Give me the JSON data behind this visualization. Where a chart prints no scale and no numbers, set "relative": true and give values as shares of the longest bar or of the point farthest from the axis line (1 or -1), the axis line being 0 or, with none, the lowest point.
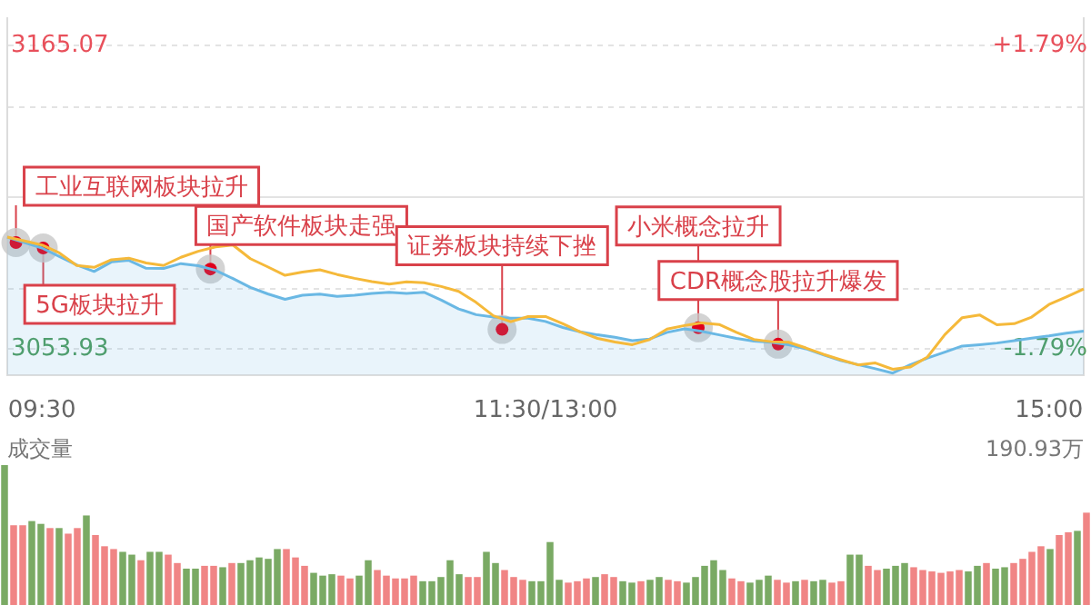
{
  "chart_data": [
    {
      "type": "line",
      "categories": [
        null,
        null,
        "09:30",
        null,
        null,
        null,
        null,
        null,
        null,
        null,
        null,
        null,
        null,
        null,
        null,
        null,
        null,
        null,
        null,
        null,
        null,
        null,
        null,
        null,
        null,
        null,
        null,
        null,
        null,
        null,
        null,
        "11:30/13:00",
        null,
        null,
        null,
        null,
        null,
        null,
        null,
        null,
        null,
        null,
        null,
        null,
        null,
        null,
        null,
        null,
        null,
        null,
        null,
        null,
        null,
        null,
        null,
        null,
        null,
        null,
        null,
        null,
        "15:00",
        null,
        null
      ],
      "ylim": [
        3044.4,
        3175.2
      ],
      "yticks": [
        3165.07,
        {
          "value": 3142.5,
          "label": null
        },
        {
          "value": 3109.5,
          "label": null
        },
        {
          "value": 3075.9,
          "label": null
        },
        3053.93
      ],
      "y2lim": [
        -2.1,
        2.12
      ],
      "y2ticks": [
        {
          "value": 1.79,
          "label": "+1.79%"
        },
        {
          "value": -1.79,
          "label": "-1.79%"
        }
      ],
      "grid": "y",
      "legend": false,
      "marker": "none",
      "series": [
        {
          "type": "area",
          "color": "#6ab8e4",
          "values": [
            3094.9,
            3092.9,
            3090.9,
            3087.8,
            3084.7,
            3082.3,
            3085.8,
            3086.4,
            3083.5,
            3083.4,
            3085.2,
            3084.4,
            3082.7,
            3079.7,
            3076.5,
            3074.1,
            3072.1,
            3073.6,
            3074.0,
            3073.2,
            3073.6,
            3074.3,
            3074.7,
            3074.3,
            3074.7,
            3071.8,
            3068.6,
            3066.5,
            3065.6,
            3065.2,
            3065.2,
            3064.0,
            3061.8,
            3060.2,
            3059.1,
            3058.2,
            3057.0,
            3057.6,
            3060.0,
            3061.3,
            3060.4,
            3059.1,
            3057.8,
            3056.8,
            3056.4,
            3055.5,
            3054.0,
            3051.8,
            3049.7,
            3048.2,
            3046.7,
            3045.1,
            3048.1,
            3050.6,
            3052.8,
            3055.0,
            3055.5,
            3056.1,
            3057.0,
            3057.9,
            3058.7,
            3059.7,
            3060.5
          ]
        },
        {
          "type": "line",
          "color": "#f5b93a",
          "values": [
            3094.9,
            3093.5,
            3092.0,
            3089.1,
            3084.5,
            3083.8,
            3086.6,
            3087.2,
            3085.4,
            3084.5,
            3087.5,
            3089.7,
            3091.3,
            3092.0,
            3087.0,
            3084.0,
            3080.9,
            3082.1,
            3082.9,
            3081.2,
            3079.8,
            3078.6,
            3077.7,
            3078.5,
            3078.2,
            3076.8,
            3075.0,
            3071.0,
            3066.1,
            3063.9,
            3065.8,
            3065.8,
            3063.2,
            3060.2,
            3057.8,
            3056.5,
            3055.5,
            3057.4,
            3061.2,
            3062.5,
            3063.5,
            3062.9,
            3060.0,
            3057.4,
            3056.6,
            3056.4,
            3054.3,
            3052.0,
            3050.0,
            3048.1,
            3048.8,
            3046.5,
            3047.3,
            3051.0,
            3059.2,
            3065.4,
            3066.4,
            3062.8,
            3063.2,
            3065.6,
            3070.2,
            3073.0,
            3075.9
          ]
        }
      ],
      "annotations": [
        "工业互联网板块拉升",
        "5G板块拉升",
        {
          "text": "国产软件板块走强",
          "y": 3083.2
        },
        {
          "text": "证券板块持续下挫",
          "y": 3061.1
        },
        {
          "text": "小米概念拉升",
          "y": 3061.7
        },
        {
          "text": "CDR概念股拉升爆发",
          "y": 3055.7
        }
      ]
    },
    {
      "type": "bar",
      "relative": true,
      "legend": false,
      "tick_labels": false,
      "categories": [
        null,
        null,
        null,
        null,
        null,
        null,
        null,
        null,
        null,
        null,
        null,
        null,
        null,
        null,
        null,
        null,
        null,
        null,
        null,
        null,
        null,
        null,
        null,
        null,
        null,
        null,
        null,
        null,
        null,
        null,
        null,
        null,
        null,
        null,
        null,
        null,
        null,
        null,
        null,
        null,
        null,
        null,
        null,
        null,
        null,
        null,
        null,
        null,
        null,
        null,
        null,
        null,
        null,
        null,
        null,
        null,
        null,
        null,
        null,
        null,
        null,
        null,
        null,
        null,
        null,
        null,
        null,
        null,
        null,
        null,
        null,
        null,
        null,
        null,
        null,
        null,
        null,
        null,
        null,
        null,
        null,
        null,
        null,
        null,
        null,
        null,
        null,
        null,
        null,
        null,
        null,
        null,
        null,
        null,
        null,
        null,
        null,
        null,
        null,
        null,
        null,
        null,
        null,
        null,
        null,
        null,
        null,
        null,
        null,
        null,
        null,
        null,
        null,
        null,
        null,
        null,
        null,
        null,
        null,
        null
      ],
      "values": [
        1.0,
        0.57,
        0.57,
        0.6,
        0.58,
        0.55,
        0.55,
        0.51,
        0.55,
        0.64,
        0.5,
        0.42,
        0.4,
        0.38,
        0.36,
        0.32,
        0.38,
        0.38,
        0.36,
        0.3,
        0.26,
        0.26,
        0.28,
        0.28,
        0.27,
        0.3,
        0.3,
        0.32,
        0.34,
        0.33,
        0.4,
        0.4,
        0.34,
        0.28,
        0.23,
        0.21,
        0.22,
        0.21,
        0.19,
        0.21,
        0.32,
        0.25,
        0.21,
        0.19,
        0.19,
        0.21,
        0.17,
        0.17,
        0.2,
        0.32,
        0.22,
        0.2,
        0.2,
        0.38,
        0.3,
        0.25,
        0.2,
        0.18,
        0.17,
        0.17,
        0.45,
        0.18,
        0.16,
        0.17,
        0.19,
        0.2,
        0.22,
        0.2,
        0.17,
        0.16,
        0.17,
        0.18,
        0.2,
        0.18,
        0.17,
        0.16,
        0.2,
        0.28,
        0.32,
        0.25,
        0.19,
        0.17,
        0.16,
        0.18,
        0.21,
        0.18,
        0.16,
        0.17,
        0.18,
        0.17,
        0.18,
        0.16,
        0.17,
        0.36,
        0.36,
        0.28,
        0.25,
        0.26,
        0.28,
        0.3,
        0.27,
        0.25,
        0.24,
        0.23,
        0.24,
        0.25,
        0.24,
        0.28,
        0.3,
        0.26,
        0.27,
        0.3,
        0.33,
        0.38,
        0.42,
        0.4,
        0.5,
        0.52,
        0.53,
        0.66
      ],
      "colors": [
        "#7aaa64",
        "#f08585",
        "#f08585",
        "#7aaa64",
        "#7aaa64",
        "#f08585",
        "#7aaa64",
        "#f08585",
        "#f08585",
        "#7aaa64",
        "#f08585",
        "#f08585",
        "#f08585",
        "#7aaa64",
        "#7aaa64",
        "#f08585",
        "#7aaa64",
        "#7aaa64",
        "#f08585",
        "#f08585",
        "#7aaa64",
        "#7aaa64",
        "#f08585",
        "#f08585",
        "#7aaa64",
        "#f08585",
        "#7aaa64",
        "#7aaa64",
        "#7aaa64",
        "#7aaa64",
        "#7aaa64",
        "#f08585",
        "#f08585",
        "#f08585",
        "#7aaa64",
        "#7aaa64",
        "#7aaa64",
        "#f08585",
        "#f08585",
        "#7aaa64",
        "#7aaa64",
        "#f08585",
        "#f08585",
        "#f08585",
        "#f08585",
        "#f08585",
        "#7aaa64",
        "#7aaa64",
        "#7aaa64",
        "#7aaa64",
        "#7aaa64",
        "#f08585",
        "#f08585",
        "#7aaa64",
        "#7aaa64",
        "#f08585",
        "#f08585",
        "#f08585",
        "#7aaa64",
        "#7aaa64",
        "#7aaa64",
        "#7aaa64",
        "#f08585",
        "#f08585",
        "#f08585",
        "#7aaa64",
        "#f08585",
        "#f08585",
        "#7aaa64",
        "#7aaa64",
        "#f08585",
        "#7aaa64",
        "#7aaa64",
        "#f08585",
        "#f08585",
        "#7aaa64",
        "#7aaa64",
        "#7aaa64",
        "#7aaa64",
        "#7aaa64",
        "#f08585",
        "#f08585",
        "#7aaa64",
        "#7aaa64",
        "#7aaa64",
        "#f08585",
        "#f08585",
        "#7aaa64",
        "#f08585",
        "#7aaa64",
        "#7aaa64",
        "#f08585",
        "#f08585",
        "#7aaa64",
        "#7aaa64",
        "#f08585",
        "#f08585",
        "#7aaa64",
        "#7aaa64",
        "#7aaa64",
        "#f08585",
        "#f08585",
        "#f08585",
        "#f08585",
        "#f08585",
        "#f08585",
        "#7aaa64",
        "#7aaa64",
        "#f08585",
        "#7aaa64",
        "#7aaa64",
        "#f08585",
        "#f08585",
        "#f08585",
        "#f08585",
        "#7aaa64",
        "#f08585",
        "#f08585",
        "#7aaa64",
        "#f08585"
      ],
      "annotations": [
        "成交量",
        "190.93万"
      ]
    }
  ]
}
